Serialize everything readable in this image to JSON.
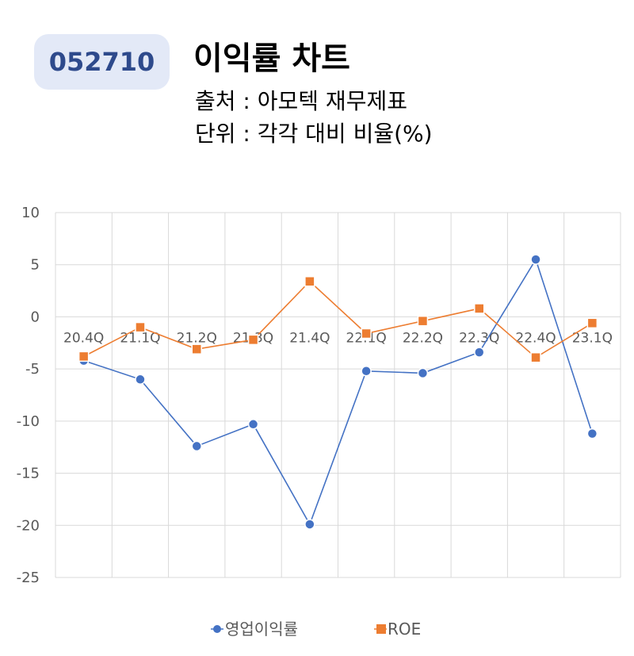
{
  "header": {
    "code": "052710",
    "title": "이익률 차트",
    "source": "출처 : 아모텍 재무제표",
    "unit": "단위 : 각각 대비 비율(%)"
  },
  "chart_data": {
    "type": "line",
    "categories": [
      "20.4Q",
      "21.1Q",
      "21.2Q",
      "21.3Q",
      "21.4Q",
      "22.1Q",
      "22.2Q",
      "22.3Q",
      "22.4Q",
      "23.1Q"
    ],
    "series": [
      {
        "name": "영업이익률",
        "color": "#4472c4",
        "marker": "circle",
        "values": [
          -4.2,
          -6.0,
          -12.4,
          -10.3,
          -19.9,
          -5.2,
          -5.4,
          -3.4,
          5.5,
          -11.2
        ]
      },
      {
        "name": "ROE",
        "color": "#ed7d31",
        "marker": "square",
        "values": [
          -3.8,
          -1.0,
          -3.1,
          -2.2,
          3.4,
          -1.6,
          -0.4,
          0.8,
          -3.9,
          -0.6
        ]
      }
    ],
    "ylim": [
      -25,
      10
    ],
    "yticks": [
      10,
      5,
      0,
      -5,
      -10,
      -15,
      -20,
      -25
    ],
    "grid": true,
    "legend_position": "bottom",
    "xlabel": "",
    "ylabel": ""
  }
}
